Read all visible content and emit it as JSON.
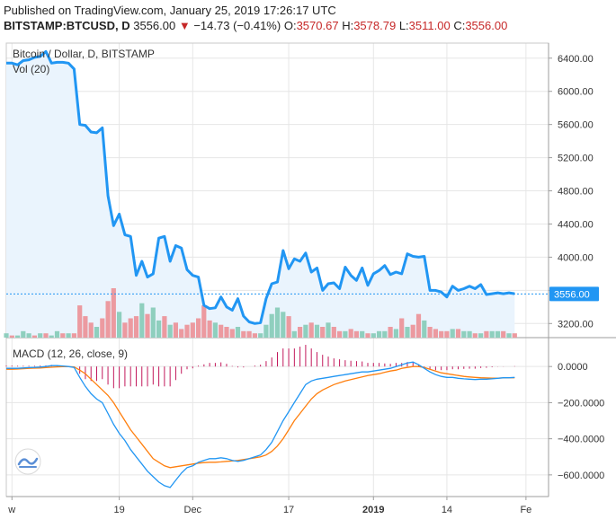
{
  "header": {
    "published": "Published on TradingView.com, January 25, 2019 17:26:17 UTC",
    "symbol": "BITSTAMP:BTCUSD, D",
    "last": "3556.00",
    "change_arrow": "▼",
    "change": "−14.73 (−0.41%)",
    "o_label": "O:",
    "o_value": "3570.67",
    "h_label": "H:",
    "h_value": "3578.79",
    "l_label": "L:",
    "l_value": "3511.00",
    "c_label": "C:",
    "c_value": "3556.00"
  },
  "colors": {
    "price_line": "#2196f3",
    "price_fill": "#eaf4fd",
    "vol_up": "#8fcfbe",
    "vol_down": "#ec9aa0",
    "macd_line": "#2196f3",
    "signal_line": "#ff7f0e",
    "histogram": "#c2185b",
    "last_price_bg": "#2196f3",
    "grid": "#e6e6e6"
  },
  "chart_data": [
    {
      "type": "line",
      "title": "Bitcoin / Dollar, D, BITSTAMP",
      "volume_label": "Vol (20)",
      "last_price_label": "3556.00",
      "y_ticks": [
        3200,
        3600,
        4000,
        4400,
        4800,
        5200,
        5600,
        6000,
        6400
      ],
      "y_tick_labels": [
        "3200.00",
        "3600.00",
        "4000.00",
        "4400.00",
        "4800.00",
        "5200.00",
        "5600.00",
        "6000.00",
        "6400.00"
      ],
      "ylim": [
        3030,
        6560
      ],
      "x_tick_labels": [
        "w",
        "19",
        "Dec",
        "17",
        "2019",
        "14",
        "Fe"
      ],
      "x_tick_days": [
        1,
        20,
        33,
        50,
        65,
        78,
        92
      ],
      "start_date": "2018-10-31",
      "series": [
        {
          "values": [
            6340,
            6340,
            6320,
            6370,
            6380,
            6410,
            6420,
            6480,
            6340,
            6350,
            6350,
            6340,
            6270,
            5600,
            5590,
            5510,
            5500,
            5560,
            4740,
            4380,
            4520,
            4270,
            4250,
            3780,
            3950,
            3760,
            3800,
            4230,
            4250,
            3950,
            4140,
            4110,
            3850,
            3780,
            3760,
            3420,
            3380,
            3390,
            3520,
            3400,
            3360,
            3500,
            3290,
            3220,
            3200,
            3210,
            3500,
            3680,
            3700,
            4080,
            3860,
            3980,
            3950,
            4050,
            3820,
            3870,
            3600,
            3680,
            3690,
            3620,
            3880,
            3780,
            3720,
            3870,
            3660,
            3800,
            3840,
            3900,
            3790,
            3820,
            3800,
            4040,
            4010,
            4000,
            4010,
            3600,
            3600,
            3580,
            3520,
            3650,
            3600,
            3620,
            3650,
            3620,
            3670,
            3550,
            3560,
            3570,
            3560,
            3570,
            3560
          ]
        }
      ],
      "volume": [
        2,
        1,
        1,
        3,
        2,
        1,
        2,
        2,
        1,
        3,
        2,
        2,
        2,
        15,
        10,
        7,
        5,
        9,
        17,
        23,
        12,
        7,
        9,
        10,
        16,
        11,
        14,
        8,
        10,
        6,
        7,
        4,
        6,
        7,
        9,
        15,
        8,
        7,
        6,
        5,
        4,
        5,
        3,
        3,
        2,
        2,
        6,
        11,
        14,
        12,
        10,
        3,
        5,
        6,
        7,
        6,
        5,
        7,
        5,
        3,
        3,
        4,
        3,
        3,
        2,
        2,
        3,
        3,
        5,
        4,
        9,
        5,
        6,
        11,
        8,
        5,
        4,
        3,
        3,
        4,
        4,
        3,
        3,
        2,
        2,
        3,
        3,
        3,
        3,
        2,
        2
      ],
      "volume_up": [
        1,
        0,
        1,
        1,
        1,
        0,
        1,
        0,
        1,
        1,
        0,
        1,
        0,
        0,
        0,
        0,
        1,
        0,
        0,
        0,
        1,
        0,
        0,
        0,
        1,
        0,
        1,
        1,
        0,
        1,
        0,
        0,
        0,
        0,
        0,
        0,
        0,
        1,
        0,
        0,
        0,
        1,
        0,
        0,
        0,
        1,
        1,
        1,
        1,
        1,
        0,
        1,
        0,
        1,
        0,
        1,
        0,
        1,
        0,
        0,
        1,
        0,
        0,
        1,
        0,
        1,
        1,
        1,
        0,
        1,
        0,
        1,
        0,
        0,
        1,
        0,
        0,
        0,
        0,
        1,
        0,
        1,
        1,
        0,
        1,
        0,
        1,
        1,
        0,
        1,
        0
      ]
    },
    {
      "type": "line",
      "title": "MACD (12, 26, close, 9)",
      "y_ticks": [
        0,
        -200,
        -400,
        -600
      ],
      "y_tick_labels": [
        "0.0000",
        "−200.0000",
        "−400.0000",
        "−600.0000"
      ],
      "ylim": [
        -720,
        160
      ],
      "series": [
        {
          "name": "MACD",
          "values": [
            -10,
            -10,
            -10,
            -8,
            -6,
            -5,
            -3,
            0,
            5,
            5,
            3,
            0,
            -5,
            -60,
            -110,
            -150,
            -180,
            -200,
            -260,
            -320,
            -370,
            -410,
            -460,
            -500,
            -540,
            -580,
            -610,
            -640,
            -660,
            -670,
            -630,
            -590,
            -560,
            -550,
            -530,
            -520,
            -510,
            -510,
            -505,
            -510,
            -520,
            -525,
            -520,
            -510,
            -500,
            -490,
            -460,
            -420,
            -360,
            -300,
            -250,
            -200,
            -150,
            -100,
            -80,
            -70,
            -65,
            -60,
            -55,
            -50,
            -45,
            -40,
            -35,
            -30,
            -30,
            -25,
            -20,
            -15,
            -10,
            0,
            10,
            20,
            25,
            10,
            -10,
            -30,
            -45,
            -55,
            -60,
            -60,
            -65,
            -68,
            -70,
            -72,
            -70,
            -70,
            -68,
            -65,
            -62,
            -62,
            -60
          ]
        },
        {
          "name": "Signal",
          "values": [
            -15,
            -15,
            -14,
            -12,
            -10,
            -9,
            -8,
            -6,
            -4,
            -2,
            -1,
            -1,
            -2,
            -20,
            -40,
            -70,
            -100,
            -130,
            -160,
            -200,
            -250,
            -300,
            -350,
            -390,
            -430,
            -470,
            -510,
            -530,
            -550,
            -560,
            -555,
            -550,
            -545,
            -540,
            -535,
            -532,
            -530,
            -530,
            -528,
            -525,
            -523,
            -520,
            -515,
            -510,
            -505,
            -500,
            -490,
            -470,
            -440,
            -400,
            -350,
            -300,
            -260,
            -220,
            -180,
            -150,
            -130,
            -115,
            -100,
            -90,
            -80,
            -72,
            -65,
            -58,
            -50,
            -45,
            -40,
            -32,
            -25,
            -20,
            -10,
            -5,
            0,
            0,
            -5,
            -15,
            -25,
            -35,
            -40,
            -45,
            -50,
            -55,
            -58,
            -60,
            -62,
            -63,
            -64,
            -64,
            -63,
            -62,
            -62
          ]
        },
        {
          "name": "Histogram",
          "values": [
            5,
            5,
            4,
            4,
            4,
            4,
            5,
            6,
            9,
            7,
            4,
            1,
            -3,
            -40,
            -70,
            -80,
            -80,
            -70,
            -100,
            -120,
            -120,
            -110,
            -110,
            -110,
            -110,
            -110,
            -100,
            -110,
            -110,
            -110,
            -75,
            -40,
            -15,
            -10,
            5,
            12,
            20,
            20,
            23,
            15,
            3,
            -5,
            -5,
            0,
            5,
            10,
            30,
            50,
            80,
            100,
            100,
            100,
            110,
            120,
            100,
            80,
            65,
            55,
            45,
            40,
            35,
            32,
            30,
            28,
            20,
            20,
            20,
            17,
            15,
            20,
            20,
            25,
            25,
            10,
            -5,
            -15,
            -20,
            -20,
            -20,
            -15,
            -15,
            -13,
            -12,
            -12,
            -8,
            -7,
            -4,
            -1,
            1,
            0,
            2
          ]
        }
      ]
    }
  ]
}
